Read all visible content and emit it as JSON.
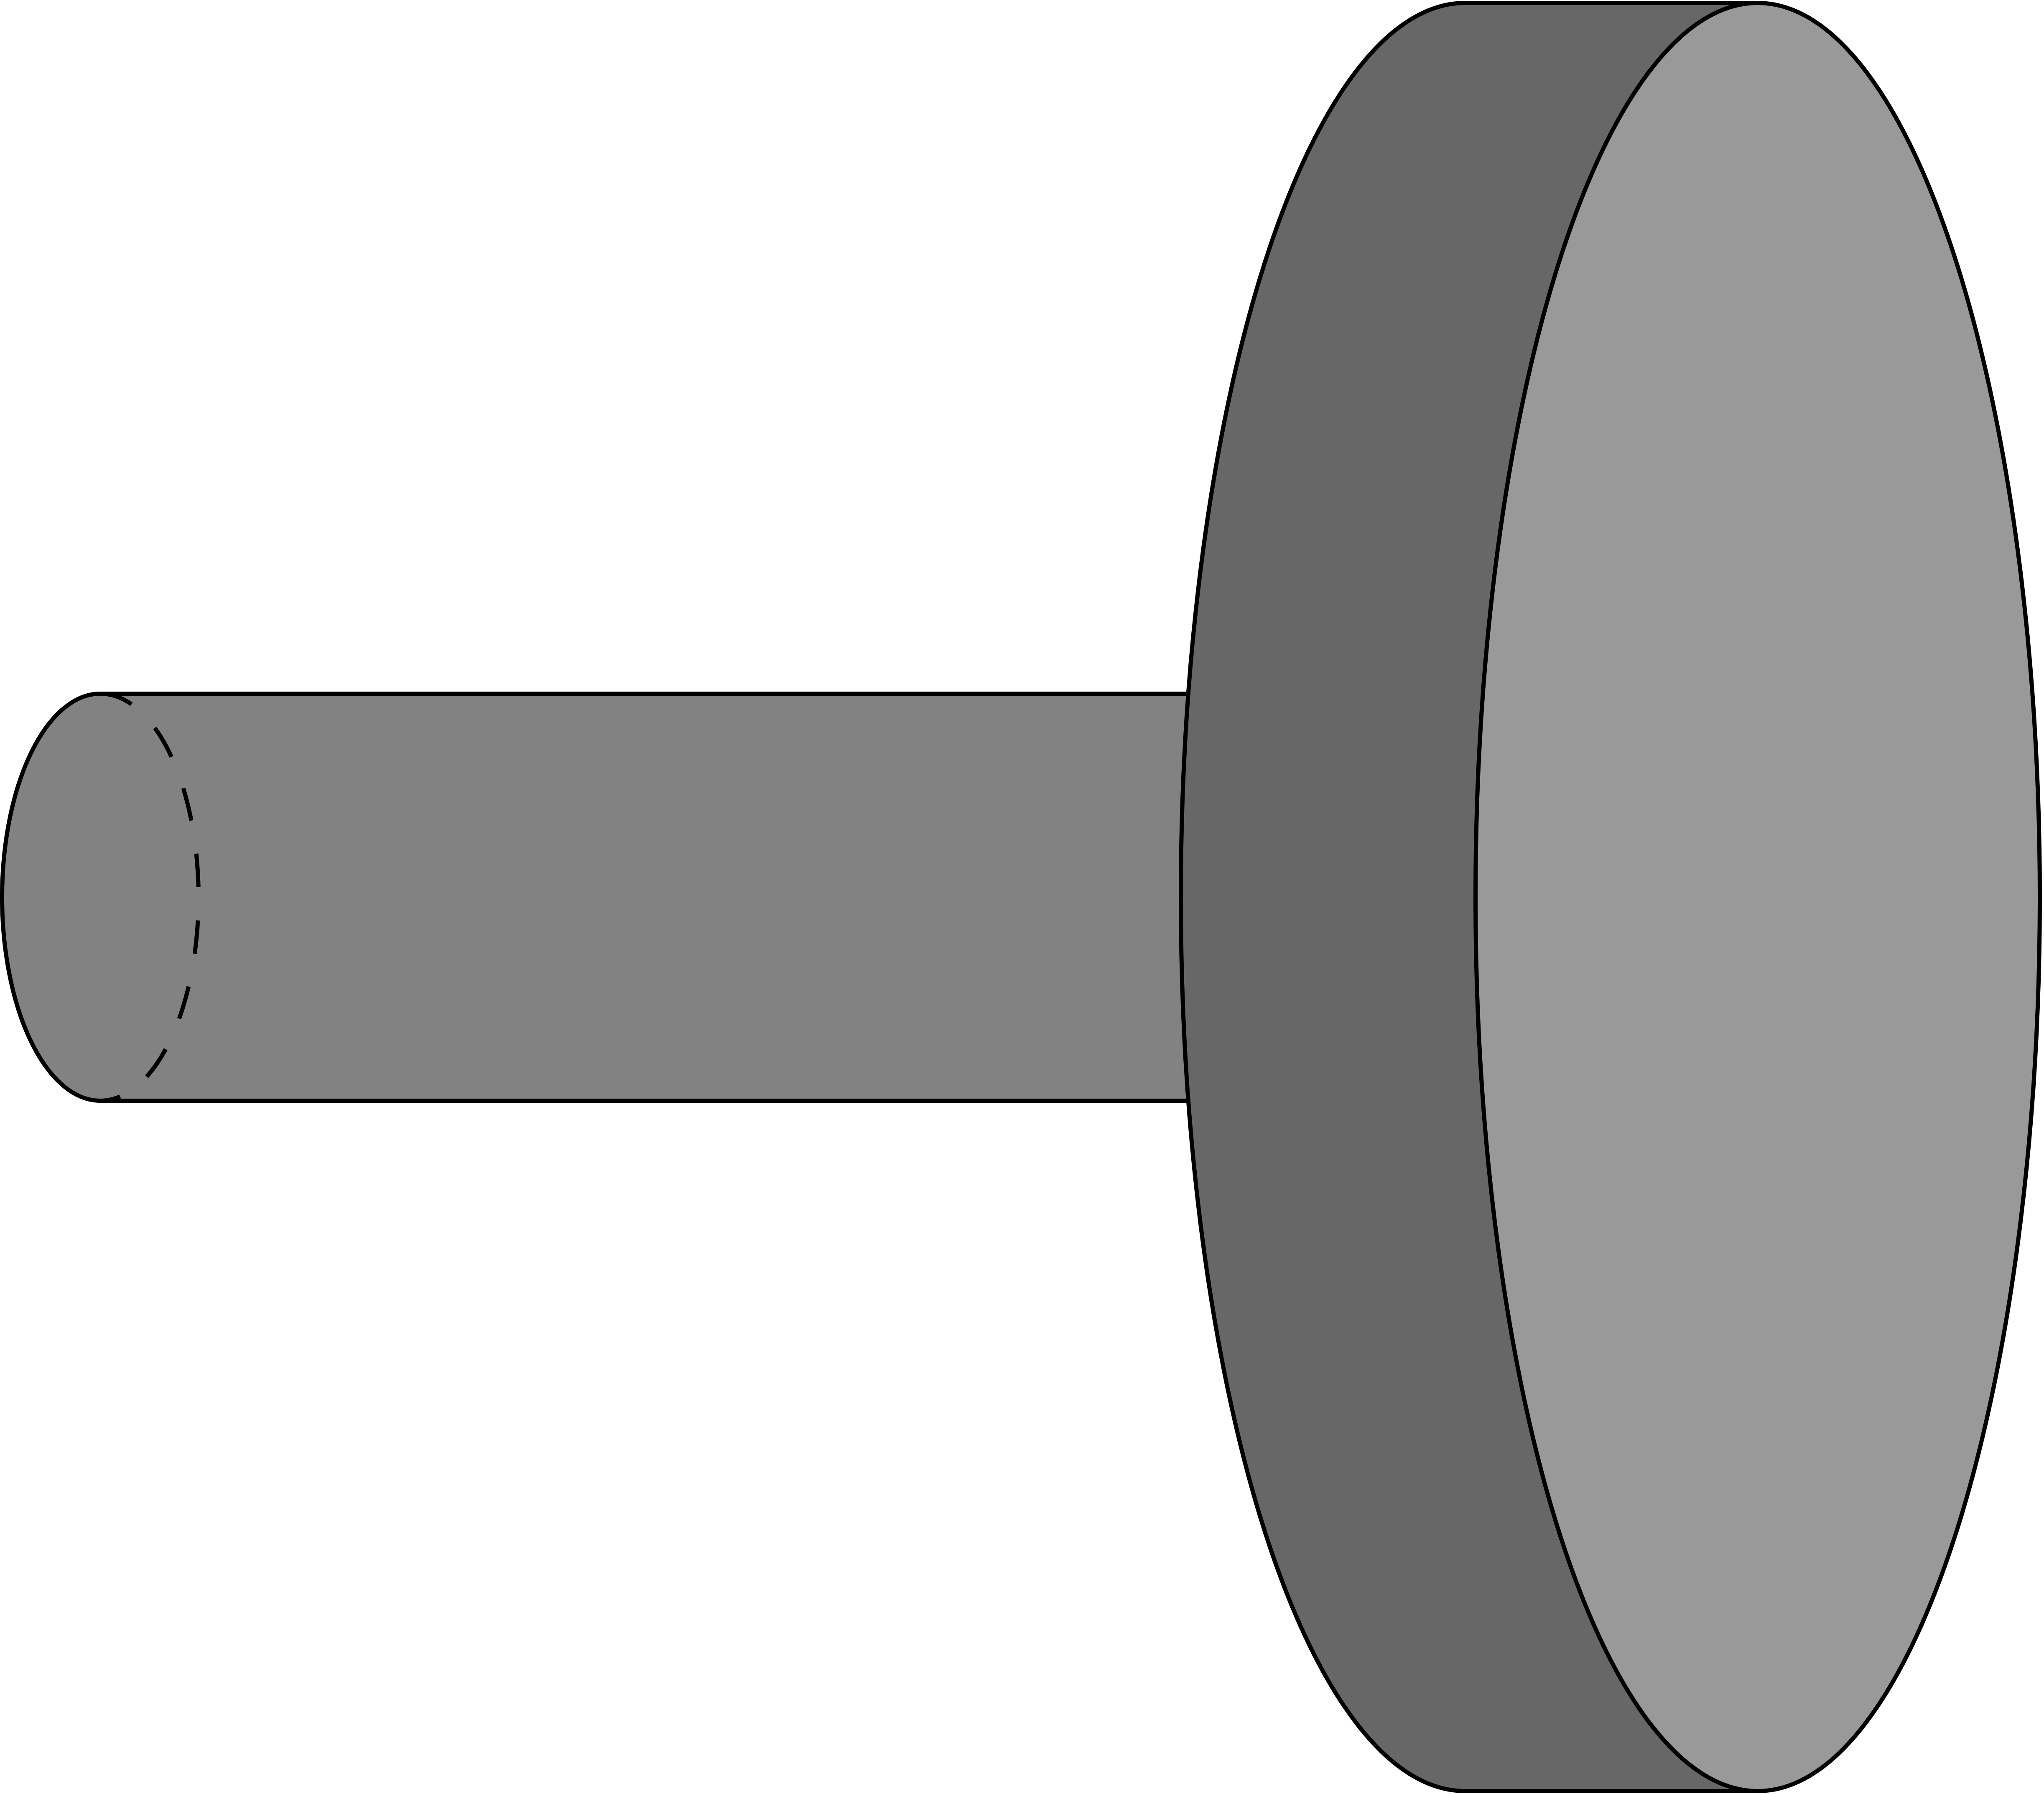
{
  "diagram": {
    "kind": "3d-solid-illustration",
    "parts": [
      {
        "name": "shaft",
        "shape": "cylinder",
        "fill": "#828282"
      },
      {
        "name": "disc",
        "shape": "cylinder",
        "side_fill": "#676767",
        "face_fill": "#999999"
      }
    ],
    "colors": {
      "background": "#ffffff",
      "outline": "#000000",
      "shaft_body": "#828282",
      "disc_side": "#676767",
      "disc_face": "#999999"
    }
  }
}
